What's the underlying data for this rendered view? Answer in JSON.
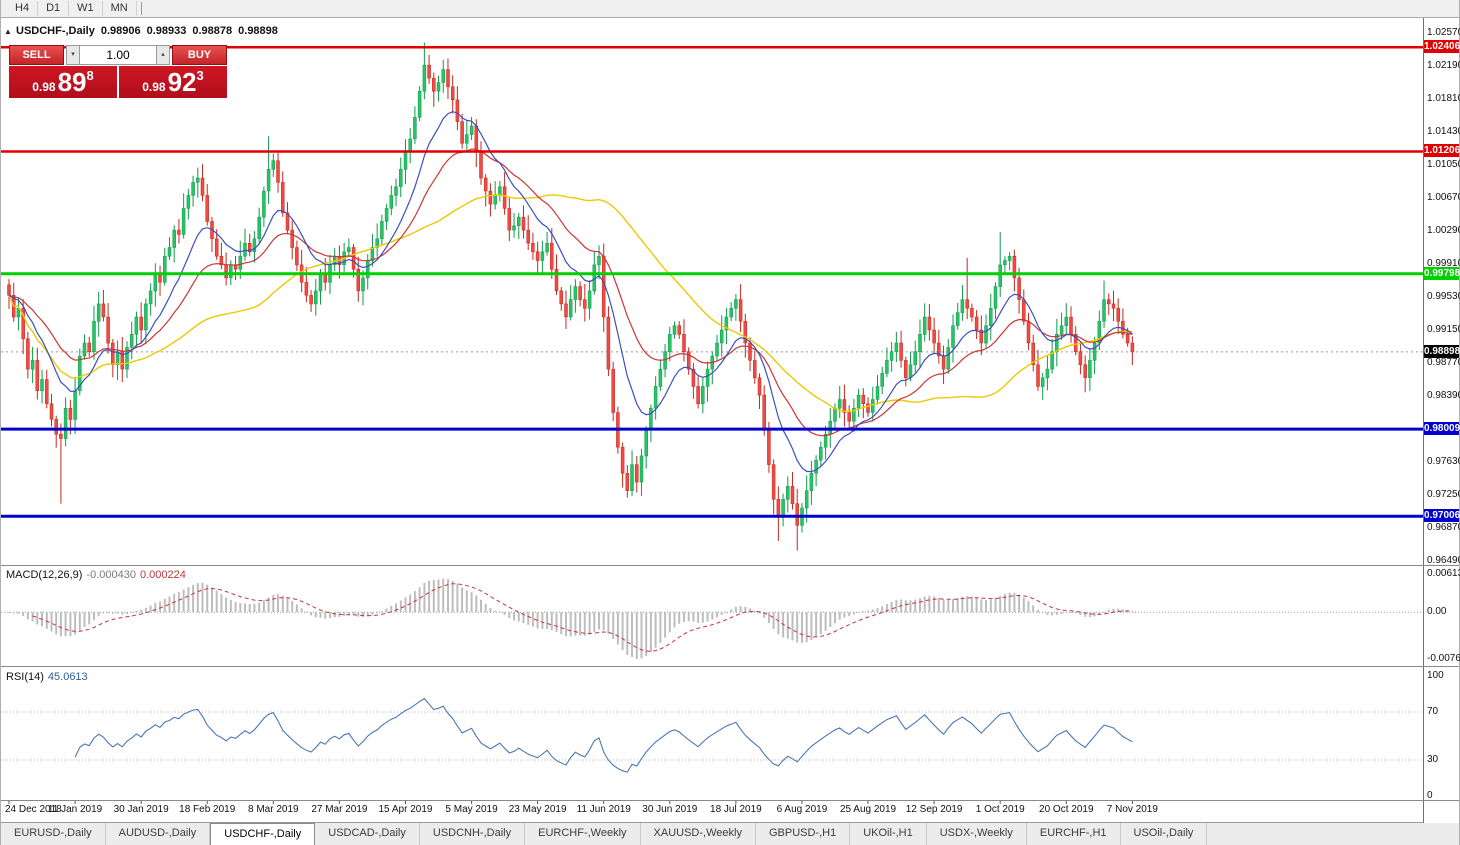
{
  "window": {
    "periods": [
      "H4",
      "D1",
      "W1",
      "MN"
    ]
  },
  "chart_header": {
    "collapse_icon": "▲",
    "symbol": "USDCHF-,Daily",
    "open": "0.98906",
    "high": "0.98933",
    "low": "0.98878",
    "close": "0.98898"
  },
  "trade_panel": {
    "sell_label": "SELL",
    "buy_label": "BUY",
    "volume": "1.00",
    "spin_down": "▾",
    "spin_up": "▴",
    "sell_price": {
      "small": "0.98",
      "big": "89",
      "sup": "8"
    },
    "buy_price": {
      "small": "0.98",
      "big": "92",
      "sup": "3"
    }
  },
  "price_axis": {
    "ticks": [
      "1.02570",
      "1.02190",
      "1.01810",
      "1.01430",
      "1.01050",
      "1.00670",
      "1.00290",
      "0.99910",
      "0.99530",
      "0.99150",
      "0.98770",
      "0.98390",
      "0.98010",
      "0.97630",
      "0.97250",
      "0.96870",
      "0.96490"
    ]
  },
  "current_price": {
    "label": "0.98898",
    "value": 0.98898,
    "badge_color": "#000000"
  },
  "level_lines": [
    {
      "price": 1.02406,
      "label": "1.02406",
      "color": "#e00000",
      "thickness": 2.5
    },
    {
      "price": 1.01206,
      "label": "1.01206",
      "color": "#e00000",
      "thickness": 2.5
    },
    {
      "price": 0.99798,
      "label": "0.99798",
      "color": "#00cf00",
      "thickness": 3
    },
    {
      "price": 0.98009,
      "label": "0.98009",
      "color": "#0000cf",
      "thickness": 3
    },
    {
      "price": 0.97006,
      "label": "0.97006",
      "color": "#0000cf",
      "thickness": 3
    }
  ],
  "indicators": {
    "macd": {
      "label": "MACD(12,26,9)",
      "value_main": "-0.000430",
      "value_signal": "0.000224",
      "axis": [
        "0.00613",
        "0.00",
        "-0.00761"
      ],
      "axis_values": [
        0.00613,
        0,
        -0.00761
      ],
      "range_max": 0.0073,
      "range_min": -0.0087
    },
    "rsi": {
      "label": "RSI(14)",
      "value": "45.0613",
      "axis": [
        "100",
        "70",
        "30",
        "0"
      ],
      "axis_values": [
        100,
        70,
        30,
        0
      ],
      "levels": [
        70,
        30
      ]
    }
  },
  "time_axis": {
    "dates": [
      "24 Dec 2018",
      "11 Jan 2019",
      "30 Jan 2019",
      "18 Feb 2019",
      "8 Mar 2019",
      "27 Mar 2019",
      "15 Apr 2019",
      "5 May 2019",
      "23 May 2019",
      "11 Jun 2019",
      "30 Jun 2019",
      "18 Jul 2019",
      "6 Aug 2019",
      "25 Aug 2019",
      "12 Sep 2019",
      "1 Oct 2019",
      "20 Oct 2019",
      "7 Nov 2019"
    ],
    "indices": [
      0,
      14,
      28,
      42,
      56,
      70,
      84,
      98,
      112,
      126,
      140,
      154,
      168,
      182,
      196,
      210,
      224,
      238
    ]
  },
  "tabs": {
    "items": [
      {
        "label": "EURUSD-,Daily",
        "active": false
      },
      {
        "label": "AUDUSD-,Daily",
        "active": false
      },
      {
        "label": "USDCHF-,Daily",
        "active": true
      },
      {
        "label": "USDCAD-,Daily",
        "active": false
      },
      {
        "label": "USDCNH-,Daily",
        "active": false
      },
      {
        "label": "EURCHF-,Weekly",
        "active": false
      },
      {
        "label": "XAUUSD-,Weekly",
        "active": false
      },
      {
        "label": "GBPUSD-,H1",
        "active": false
      },
      {
        "label": "UKOil-,H1",
        "active": false
      },
      {
        "label": "USDX-,Weekly",
        "active": false
      },
      {
        "label": "EURCHF-,H1",
        "active": false
      },
      {
        "label": "USOil-,Daily",
        "active": false
      }
    ]
  },
  "colors": {
    "candle_up": "#27c466",
    "candle_up_border": "#119a4c",
    "candle_down": "#f04a43",
    "candle_down_border": "#c4281f",
    "ma_fast": "#3b4fc0",
    "ma_mid": "#cf3333",
    "ma_slow": "#eec800",
    "macd_hist": "#bdbdbd",
    "macd_signal": "#cc3333",
    "rsi_line": "#4a78b5",
    "rsi_levels": "#b8b8cc",
    "current_price_line": "#999999"
  },
  "chart_data": {
    "type": "candlestick",
    "symbol": "USDCHF",
    "timeframe": "Daily",
    "y_axis": {
      "max": 1.0257,
      "min": 0.9649
    },
    "closes": [
      0.9955,
      0.993,
      0.994,
      0.9905,
      0.987,
      0.988,
      0.9845,
      0.9858,
      0.983,
      0.9812,
      0.9795,
      0.979,
      0.9825,
      0.9812,
      0.9845,
      0.9885,
      0.99,
      0.989,
      0.9925,
      0.9945,
      0.993,
      0.99,
      0.9875,
      0.989,
      0.987,
      0.9895,
      0.991,
      0.993,
      0.9915,
      0.9945,
      0.996,
      0.998,
      0.997,
      1.0,
      1.001,
      1.003,
      1.0025,
      1.0055,
      1.007,
      1.0085,
      1.009,
      1.007,
      1.004,
      1.002,
      1.0,
      0.999,
      0.9975,
      0.999,
      0.9985,
      1.0,
      1.0015,
      1.0005,
      1.002,
      1.0045,
      1.0075,
      1.01,
      1.011,
      1.0085,
      1.005,
      1.003,
      1.001,
      0.999,
      0.997,
      0.9955,
      0.9945,
      0.996,
      0.998,
      0.997,
      0.999,
      1.0,
      0.999,
      1.0005,
      1.001,
      0.9985,
      0.996,
      0.9975,
      0.9995,
      1.001,
      1.002,
      1.004,
      1.0055,
      1.007,
      1.008,
      1.01,
      1.012,
      1.0135,
      1.016,
      1.019,
      1.022,
      1.0205,
      1.019,
      1.02,
      1.0215,
      1.0195,
      1.018,
      1.0155,
      1.013,
      1.014,
      1.015,
      1.012,
      1.009,
      1.0075,
      1.006,
      1.007,
      1.008,
      1.0055,
      1.003,
      1.0035,
      1.0045,
      1.003,
      1.0015,
      1.0005,
      0.9995,
      1.0005,
      1.0015,
      0.9985,
      0.996,
      0.9945,
      0.993,
      0.995,
      0.9965,
      0.995,
      0.994,
      0.996,
      0.999,
      1.0,
      0.993,
      0.987,
      0.982,
      0.978,
      0.975,
      0.973,
      0.976,
      0.974,
      0.977,
      0.98,
      0.9825,
      0.985,
      0.987,
      0.989,
      0.991,
      0.992,
      0.991,
      0.989,
      0.987,
      0.985,
      0.983,
      0.985,
      0.987,
      0.9885,
      0.99,
      0.9915,
      0.993,
      0.994,
      0.995,
      0.9925,
      0.99,
      0.988,
      0.986,
      0.984,
      0.98,
      0.976,
      0.972,
      0.97,
      0.972,
      0.9735,
      0.9715,
      0.969,
      0.971,
      0.973,
      0.975,
      0.9765,
      0.978,
      0.9795,
      0.981,
      0.9825,
      0.9835,
      0.982,
      0.981,
      0.9825,
      0.984,
      0.983,
      0.982,
      0.9835,
      0.985,
      0.9865,
      0.988,
      0.989,
      0.99,
      0.988,
      0.986,
      0.9875,
      0.989,
      0.991,
      0.993,
      0.9915,
      0.99,
      0.9885,
      0.987,
      0.9895,
      0.992,
      0.9935,
      0.995,
      0.994,
      0.993,
      0.9915,
      0.99,
      0.992,
      0.994,
      0.9965,
      0.999,
      0.9995,
      1.0,
      0.9975,
      0.995,
      0.9925,
      0.99,
      0.9875,
      0.985,
      0.986,
      0.987,
      0.989,
      0.991,
      0.992,
      0.993,
      0.991,
      0.989,
      0.9875,
      0.986,
      0.988,
      0.99,
      0.9925,
      0.995,
      0.9945,
      0.994,
      0.9925,
      0.991,
      0.99,
      0.98898
    ],
    "wick_overrides": {
      "11": {
        "low": 0.9715
      },
      "40": {
        "high": 1.0102
      },
      "55": {
        "high": 1.0138
      },
      "88": {
        "high": 1.0246
      },
      "92": {
        "high": 1.0226
      },
      "114": {
        "high": 1.0028
      },
      "124": {
        "high": 1.0006
      },
      "131": {
        "low": 0.9722
      },
      "133": {
        "low": 0.9728
      },
      "163": {
        "low": 0.9672
      },
      "167": {
        "low": 0.9661
      },
      "203": {
        "high": 0.9998
      },
      "210": {
        "high": 1.0028
      },
      "232": {
        "high": 0.9972
      }
    },
    "moving_averages": [
      {
        "period": 12,
        "type": "ema",
        "name": "fast"
      },
      {
        "period": 26,
        "type": "ema",
        "name": "mid"
      },
      {
        "period": 50,
        "type": "sma",
        "name": "slow"
      }
    ],
    "macd": {
      "fast": 12,
      "slow": 26,
      "signal": 9
    },
    "rsi": {
      "period": 14
    }
  }
}
